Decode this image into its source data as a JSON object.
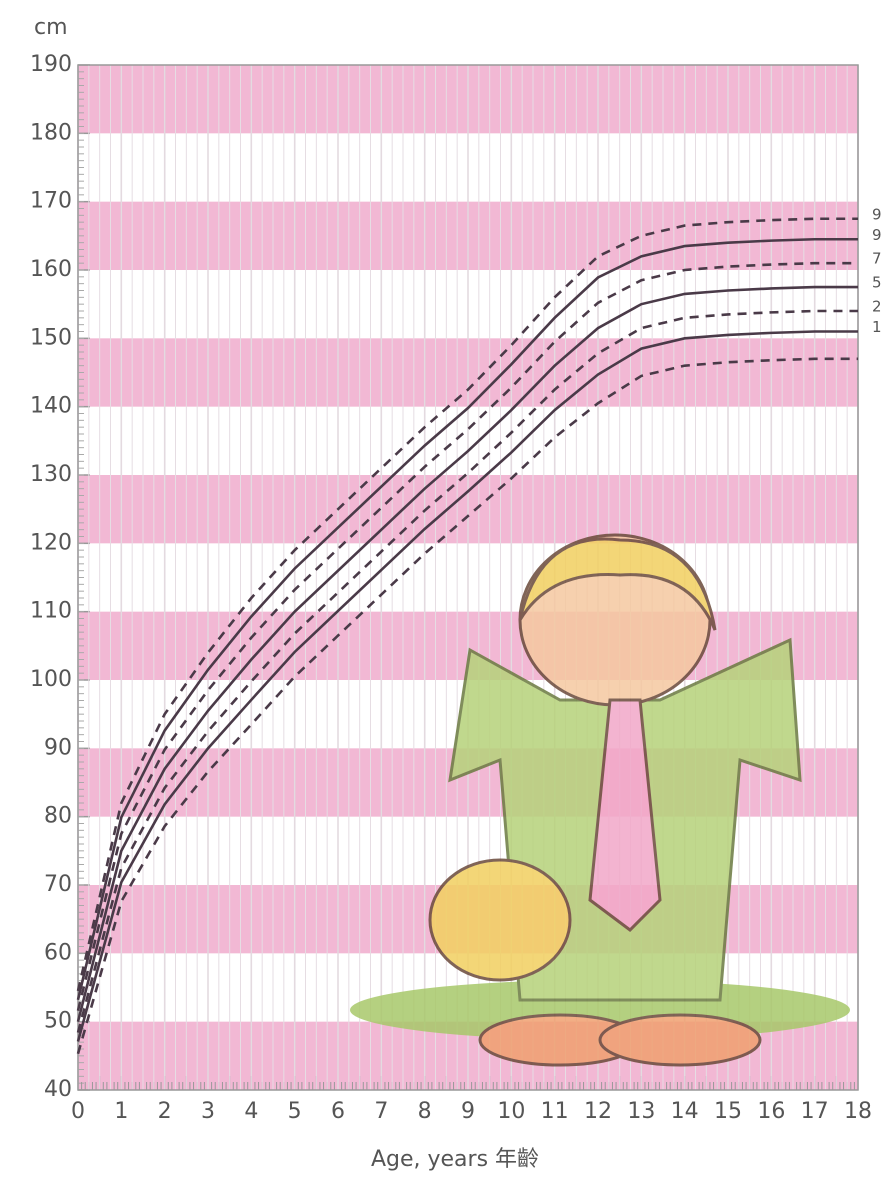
{
  "chart_data": {
    "type": "line",
    "y_label": "cm",
    "x_label": "Age, years 年齡",
    "x": [
      0,
      1,
      2,
      3,
      4,
      5,
      6,
      7,
      8,
      9,
      10,
      11,
      12,
      13,
      14,
      15,
      16,
      17,
      18
    ],
    "series": [
      {
        "name": "9",
        "dashed": true,
        "color": "#4a3a48",
        "values": [
          54.5,
          82,
          95,
          104,
          112,
          119,
          125,
          131,
          137,
          142.5,
          149,
          156,
          162,
          165,
          166.5,
          167,
          167.3,
          167.5,
          167.5
        ]
      },
      {
        "name": "9",
        "dashed": false,
        "color": "#4a3a48",
        "values": [
          53.2,
          79.9,
          92.6,
          101.5,
          109.3,
          116.3,
          122.3,
          128.3,
          134.3,
          139.8,
          146.2,
          153,
          158.9,
          162,
          163.5,
          164,
          164.3,
          164.5,
          164.5
        ]
      },
      {
        "name": "7",
        "dashed": true,
        "color": "#4a3a48",
        "values": [
          51.6,
          77.5,
          89.8,
          98.5,
          106.2,
          113.2,
          119.2,
          125.2,
          131.2,
          136.7,
          142.8,
          149.5,
          155.2,
          158.5,
          160,
          160.5,
          160.8,
          161,
          161
        ]
      },
      {
        "name": "5",
        "dashed": false,
        "color": "#4a3a48",
        "values": [
          50,
          75,
          87,
          95.5,
          103,
          110,
          116,
          122,
          128,
          133.5,
          139.5,
          146,
          151.5,
          155,
          156.5,
          157,
          157.3,
          157.5,
          157.5
        ]
      },
      {
        "name": "2",
        "dashed": true,
        "color": "#4a3a48",
        "values": [
          48.4,
          72.5,
          84.2,
          92.5,
          99.8,
          106.8,
          112.8,
          118.8,
          124.8,
          130.3,
          136.2,
          142.5,
          147.8,
          151.5,
          153,
          153.5,
          153.8,
          154,
          154
        ]
      },
      {
        "name": "1",
        "dashed": false,
        "color": "#4a3a48",
        "values": [
          47.1,
          70.4,
          81.8,
          90,
          97.1,
          104.1,
          110.1,
          116.1,
          122.1,
          127.6,
          133.3,
          139.5,
          144.7,
          148.5,
          150,
          150.5,
          150.8,
          151,
          151
        ]
      },
      {
        "dashed": true,
        "color": "#4a3a48",
        "values": [
          45.3,
          67.6,
          78.6,
          86.6,
          93.5,
          100.5,
          106.5,
          112.5,
          118.5,
          124,
          129.5,
          135.5,
          140.5,
          144.5,
          146,
          146.5,
          146.8,
          147,
          147
        ]
      }
    ],
    "xlim": [
      0,
      18
    ],
    "xticks": [
      0,
      1,
      2,
      3,
      4,
      5,
      6,
      7,
      8,
      9,
      10,
      11,
      12,
      13,
      14,
      15,
      16,
      17,
      18
    ],
    "ylim": [
      40,
      190
    ],
    "yticks": [
      40,
      50,
      60,
      70,
      80,
      90,
      100,
      110,
      120,
      130,
      140,
      150,
      160,
      170,
      180,
      190
    ],
    "band_color": "#f2b8d4",
    "grid": true
  }
}
